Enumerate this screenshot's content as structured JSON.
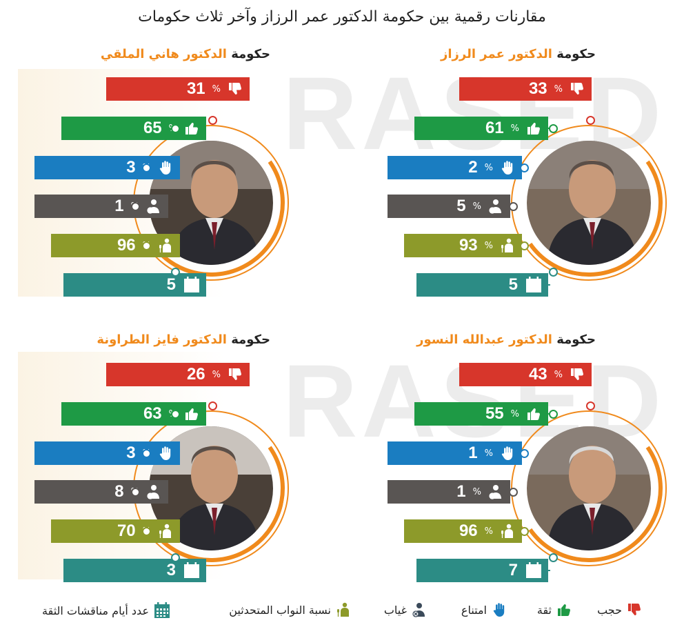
{
  "title": "مقارنات رقمية بين حكومة الدكتور عمر الرزاز وآخر ثلاث حكومات",
  "watermark": "RASED",
  "colors": {
    "red": "#d7362b",
    "green": "#1e9a45",
    "blue": "#1a7dc1",
    "gray": "#595553",
    "olive": "#8d9a2a",
    "teal": "#2c8c85",
    "orange": "#f08a1c"
  },
  "percent_sign": "%",
  "panels": [
    {
      "prefix": "حكومة ",
      "highlight": "الدكتور",
      "name": " عمر الرزاز",
      "stats": [
        {
          "key": "no_confidence",
          "value": "33",
          "icon": "thumbs-down-icon"
        },
        {
          "key": "confidence",
          "value": "61",
          "icon": "thumbs-up-icon"
        },
        {
          "key": "abstain",
          "value": "2",
          "icon": "raised-hand-icon"
        },
        {
          "key": "absent",
          "value": "5",
          "icon": "absent-person-icon"
        },
        {
          "key": "speakers",
          "value": "93",
          "icon": "speaker-icon"
        },
        {
          "key": "days",
          "value": "5",
          "icon": "calendar-icon"
        }
      ]
    },
    {
      "prefix": "حكومة ",
      "highlight": "الدكتور",
      "name": " هاني الملقي",
      "stats": [
        {
          "key": "no_confidence",
          "value": "31",
          "icon": "thumbs-down-icon"
        },
        {
          "key": "confidence",
          "value": "65",
          "icon": "thumbs-up-icon"
        },
        {
          "key": "abstain",
          "value": "3",
          "icon": "raised-hand-icon"
        },
        {
          "key": "absent",
          "value": "1",
          "icon": "absent-person-icon"
        },
        {
          "key": "speakers",
          "value": "96",
          "icon": "speaker-icon"
        },
        {
          "key": "days",
          "value": "5",
          "icon": "calendar-icon"
        }
      ]
    },
    {
      "prefix": "حكومة ",
      "highlight": "الدكتور",
      "name": " عبدالله النسور",
      "stats": [
        {
          "key": "no_confidence",
          "value": "43",
          "icon": "thumbs-down-icon"
        },
        {
          "key": "confidence",
          "value": "55",
          "icon": "thumbs-up-icon"
        },
        {
          "key": "abstain",
          "value": "1",
          "icon": "raised-hand-icon"
        },
        {
          "key": "absent",
          "value": "1",
          "icon": "absent-person-icon"
        },
        {
          "key": "speakers",
          "value": "96",
          "icon": "speaker-icon"
        },
        {
          "key": "days",
          "value": "7",
          "icon": "calendar-icon"
        }
      ]
    },
    {
      "prefix": "حكومة ",
      "highlight": "الدكتور",
      "name": " فايز الطراونة",
      "stats": [
        {
          "key": "no_confidence",
          "value": "26",
          "icon": "thumbs-down-icon"
        },
        {
          "key": "confidence",
          "value": "63",
          "icon": "thumbs-up-icon"
        },
        {
          "key": "abstain",
          "value": "3",
          "icon": "raised-hand-icon"
        },
        {
          "key": "absent",
          "value": "8",
          "icon": "absent-person-icon"
        },
        {
          "key": "speakers",
          "value": "70",
          "icon": "speaker-icon"
        },
        {
          "key": "days",
          "value": "3",
          "icon": "calendar-icon"
        }
      ]
    }
  ],
  "legend": [
    {
      "label": "حجب",
      "icon": "thumbs-down-icon",
      "color": "#d7362b"
    },
    {
      "label": "ثقة",
      "icon": "thumbs-up-icon",
      "color": "#1e9a45"
    },
    {
      "label": "امتناع",
      "icon": "raised-hand-icon",
      "color": "#1a7dc1"
    },
    {
      "label": "غياب",
      "icon": "absent-person-icon",
      "color": "#3b4a5a"
    },
    {
      "label": "نسبة النواب المتحدثين",
      "icon": "speaker-icon",
      "color": "#8d9a2a"
    },
    {
      "label": "عدد أيام مناقشات الثقة",
      "icon": "calendar-icon",
      "color": "#2c8c85"
    }
  ]
}
